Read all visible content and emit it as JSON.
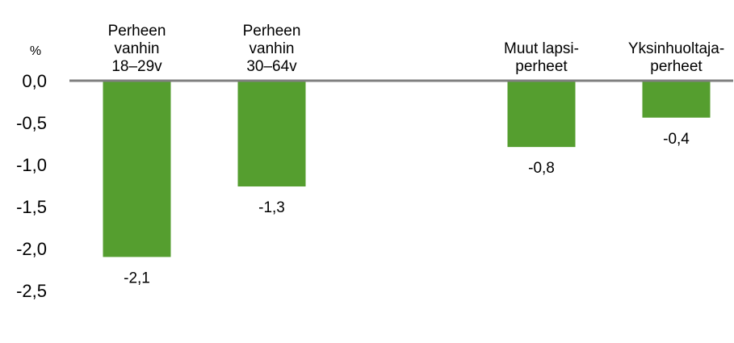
{
  "chart_data": {
    "type": "bar",
    "unit_label": "%",
    "categories": [
      [
        "Perheen",
        "vanhin",
        "18–29v"
      ],
      [
        "Perheen",
        "vanhin",
        "30–64v"
      ],
      [],
      [
        "Muut lapsi-",
        "perheet"
      ],
      [
        "Yksinhuoltaja-",
        "perheet"
      ]
    ],
    "values": [
      -2.1,
      -1.26,
      null,
      -0.79,
      -0.44
    ],
    "data_labels": [
      "-2,1",
      "-1,3",
      "",
      "-0,8",
      "-0,4"
    ],
    "yticks": [
      {
        "value": 0.0,
        "label": "0,0"
      },
      {
        "value": -0.5,
        "label": "-0,5"
      },
      {
        "value": -1.0,
        "label": "-1,0"
      },
      {
        "value": -1.5,
        "label": "-1,5"
      },
      {
        "value": -2.0,
        "label": "-2,0"
      },
      {
        "value": -2.5,
        "label": "-2,5"
      }
    ],
    "ylim": [
      -2.5,
      0
    ],
    "grid": false,
    "bar_color": "#559e2f",
    "axis_color": "#808080"
  }
}
